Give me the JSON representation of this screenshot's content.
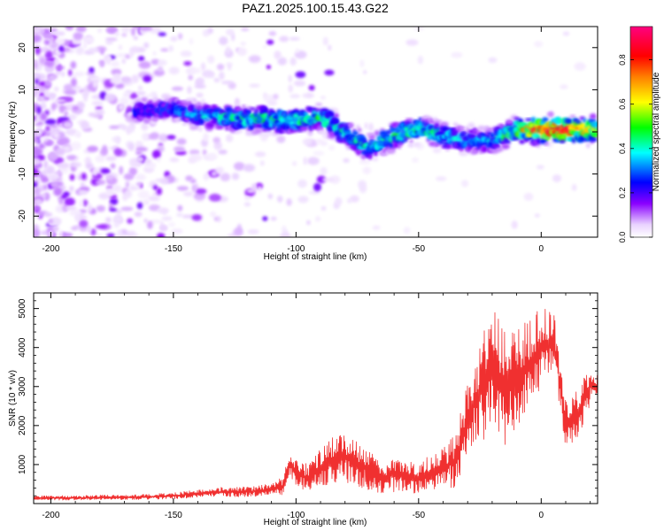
{
  "title": "PAZ1.2025.100.15.43.G22",
  "chart_data": [
    {
      "type": "heatmap",
      "name": "spectrogram",
      "xlabel": "Height of straight line (km)",
      "ylabel": "Frequency (Hz)",
      "xlim": [
        -207,
        23
      ],
      "ylim": [
        -25,
        25
      ],
      "x_ticks": [
        "-200",
        "-150",
        "-100",
        "-50",
        "0"
      ],
      "x_tick_values": [
        -200,
        -150,
        -100,
        -50,
        0
      ],
      "y_ticks": [
        "20",
        "10",
        "0",
        "-10",
        "-20"
      ],
      "y_tick_values": [
        20,
        10,
        0,
        -10,
        -20
      ],
      "colorbar": {
        "label": "Normalized spectral amplitude",
        "range": [
          0,
          0.95
        ],
        "ticks": [
          "0.0",
          "0.2",
          "0.4",
          "0.6",
          "0.8"
        ],
        "tick_values": [
          0,
          0.2,
          0.4,
          0.6,
          0.8
        ],
        "colormap": "rainbow (white, violet, blue, cyan, green, yellow, orange, red, magenta)"
      },
      "ridge": {
        "description": "frequency of spectral maximum vs height",
        "x": [
          -160,
          -150,
          -140,
          -130,
          -120,
          -110,
          -100,
          -90,
          -80,
          -70,
          -60,
          -50,
          -40,
          -30,
          -20,
          -10,
          0,
          10,
          20
        ],
        "y": [
          5,
          5.5,
          4,
          3.5,
          3,
          3,
          2.5,
          3.5,
          0,
          -4,
          -1,
          1,
          -1,
          -2,
          -2,
          0.5,
          0.5,
          0.5,
          0.5
        ],
        "peak_amplitude": [
          0.25,
          0.3,
          0.35,
          0.4,
          0.45,
          0.45,
          0.45,
          0.45,
          0.4,
          0.4,
          0.45,
          0.45,
          0.4,
          0.35,
          0.35,
          0.55,
          0.85,
          0.9,
          0.7
        ]
      }
    },
    {
      "type": "line",
      "name": "snr",
      "xlabel": "Height of straight line (km)",
      "ylabel": "SNR (10 * v/v)",
      "xlim": [
        -207,
        23
      ],
      "ylim": [
        0,
        5400
      ],
      "x_ticks": [
        "-200",
        "-150",
        "-100",
        "-50",
        "0"
      ],
      "x_tick_values": [
        -200,
        -150,
        -100,
        -50,
        0
      ],
      "y_ticks": [
        "1000",
        "2000",
        "3000",
        "4000",
        "5000"
      ],
      "y_tick_values": [
        1000,
        2000,
        3000,
        4000,
        5000
      ],
      "series": [
        {
          "color": "#f03030",
          "x": [
            -207,
            -200,
            -190,
            -180,
            -170,
            -160,
            -150,
            -140,
            -130,
            -120,
            -110,
            -105,
            -103,
            -100,
            -95,
            -90,
            -85,
            -80,
            -75,
            -70,
            -65,
            -60,
            -55,
            -50,
            -45,
            -40,
            -35,
            -30,
            -25,
            -20,
            -15,
            -10,
            -5,
            0,
            5,
            10,
            15,
            20,
            23
          ],
          "y": [
            150,
            150,
            140,
            160,
            160,
            170,
            200,
            250,
            300,
            300,
            350,
            450,
            1000,
            800,
            650,
            900,
            1100,
            1200,
            1000,
            850,
            650,
            750,
            700,
            650,
            800,
            900,
            1100,
            2200,
            2800,
            3600,
            3000,
            3200,
            3600,
            4000,
            4200,
            2000,
            2300,
            3000,
            3000
          ],
          "y_spread": [
            60,
            60,
            60,
            60,
            60,
            70,
            80,
            100,
            120,
            130,
            160,
            250,
            350,
            350,
            350,
            500,
            600,
            650,
            600,
            500,
            400,
            450,
            400,
            400,
            450,
            550,
            700,
            1000,
            1300,
            1700,
            1500,
            1400,
            1200,
            1000,
            800,
            600,
            700,
            500,
            300
          ]
        }
      ]
    }
  ]
}
